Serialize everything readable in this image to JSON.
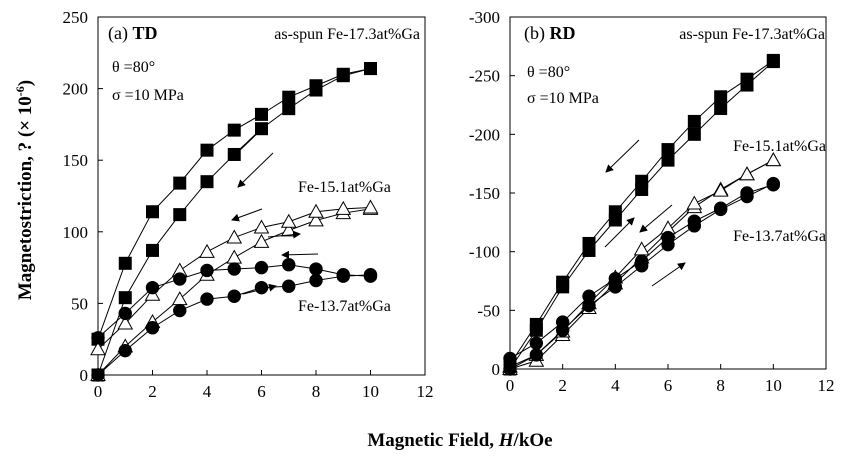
{
  "figure": {
    "ylabel": "Magnetostriction, ? (× 10",
    "ylabel_exponent": "-6",
    "ylabel_close": ")",
    "xlabel": "Magnetic Field, ",
    "xlabel_italic": "H",
    "xlabel_unit": "/kOe"
  },
  "chart_data": [
    {
      "type": "line",
      "panel_prefix": "(a) ",
      "panel_bold": "TD",
      "sample": "as-spun Fe-17.3at%Ga",
      "theta": "θ =80°",
      "sigma": "σ =10 MPa",
      "xlim": [
        0,
        12
      ],
      "ylim": [
        0,
        250
      ],
      "xticks": [
        "0",
        "2",
        "4",
        "6",
        "8",
        "10",
        "12"
      ],
      "yticks": [
        "0",
        "50",
        "100",
        "150",
        "200",
        "250"
      ],
      "series": [
        {
          "name": "as-spun Fe-17.3at%Ga",
          "marker": "square",
          "fill": "#000000",
          "up_x": [
            0,
            1,
            2,
            3,
            4,
            5,
            6,
            7,
            8,
            9,
            10
          ],
          "up": [
            0,
            54,
            87,
            112,
            135,
            154,
            172,
            186,
            199,
            209,
            214
          ],
          "down_x": [
            10,
            9,
            8,
            7,
            6,
            5,
            4,
            3,
            2,
            1,
            0
          ],
          "down": [
            214,
            210,
            202,
            194,
            182,
            171,
            157,
            134,
            114,
            78,
            25
          ]
        },
        {
          "name": "Fe-15.1at%Ga",
          "marker": "triangle",
          "fill": "#ffffff",
          "up_x": [
            0,
            1,
            2,
            3,
            4,
            5,
            6,
            7,
            8,
            9,
            10
          ],
          "up": [
            0,
            20,
            37,
            53,
            70,
            82,
            93,
            101,
            108,
            113,
            116
          ],
          "down_x": [
            10,
            9,
            8,
            7,
            6,
            5,
            4,
            3,
            2,
            1,
            0
          ],
          "down": [
            117,
            116,
            114,
            107,
            103,
            96,
            86,
            73,
            56,
            36,
            18
          ]
        },
        {
          "name": "Fe-13.7at%Ga",
          "marker": "circle",
          "fill": "#000000",
          "up_x": [
            0,
            1,
            2,
            3,
            4,
            5,
            6,
            7,
            8,
            9,
            10
          ],
          "up": [
            0,
            17,
            33,
            45,
            53,
            55,
            61,
            62,
            66,
            69,
            70
          ],
          "down_x": [
            10,
            9,
            8,
            7,
            6,
            5,
            4,
            3,
            2,
            1,
            0
          ],
          "down": [
            69,
            70,
            74,
            77,
            75,
            74,
            73,
            67,
            61,
            43,
            26
          ]
        }
      ],
      "labels": [
        "as-spun Fe-17.3at%Ga",
        "Fe-15.1at%Ga",
        "Fe-13.7at%Ga"
      ]
    },
    {
      "type": "line",
      "panel_prefix": "(b) ",
      "panel_bold": "RD",
      "sample": "as-spun Fe-17.3at%Ga",
      "theta": "θ =80°",
      "sigma": "σ =10 MPa",
      "xlim": [
        0,
        12
      ],
      "ylim": [
        0,
        -300
      ],
      "xticks": [
        "0",
        "2",
        "4",
        "6",
        "8",
        "10",
        "12"
      ],
      "yticks": [
        "0",
        "-50",
        "-100",
        "-150",
        "-200",
        "-250",
        "-300"
      ],
      "series": [
        {
          "name": "as-spun Fe-17.3at%Ga",
          "marker": "square",
          "fill": "#000000",
          "up_x": [
            0,
            1,
            2,
            3,
            4,
            5,
            6,
            7,
            8,
            9,
            10
          ],
          "up": [
            0,
            -33,
            -70,
            -101,
            -127,
            -153,
            -178,
            -200,
            -222,
            -242,
            -262
          ],
          "down_x": [
            10,
            9,
            8,
            7,
            6,
            5,
            4,
            3,
            2,
            1,
            0
          ],
          "down": [
            -263,
            -247,
            -232,
            -211,
            -187,
            -160,
            -134,
            -107,
            -74,
            -38,
            -4
          ]
        },
        {
          "name": "Fe-15.1at%Ga",
          "marker": "triangle",
          "fill": "#ffffff",
          "up_x": [
            0,
            1,
            2,
            3,
            4,
            5,
            6,
            7,
            8,
            9,
            10
          ],
          "up": [
            0,
            -7,
            -29,
            -52,
            -73,
            -95,
            -117,
            -138,
            -153,
            -166,
            -178
          ],
          "down_x": [
            10,
            9,
            8,
            7,
            6,
            5,
            4,
            3,
            2,
            1,
            0
          ],
          "down": [
            -178,
            -166,
            -152,
            -141,
            -120,
            -102,
            -78,
            -56,
            -32,
            -12,
            -2
          ]
        },
        {
          "name": "Fe-13.7at%Ga",
          "marker": "circle",
          "fill": "#000000",
          "up_x": [
            0,
            1,
            2,
            3,
            4,
            5,
            6,
            7,
            8,
            9,
            10
          ],
          "up": [
            0,
            -12,
            -33,
            -54,
            -70,
            -88,
            -106,
            -122,
            -136,
            -147,
            -158
          ],
          "down_x": [
            10,
            9,
            8,
            7,
            6,
            5,
            4,
            3,
            2,
            1,
            0
          ],
          "down": [
            -157,
            -150,
            -137,
            -126,
            -112,
            -92,
            -77,
            -62,
            -40,
            -22,
            -9
          ]
        }
      ],
      "labels": [
        "as-spun Fe-17.3at%Ga",
        "Fe-15.1at%Ga",
        "Fe-13.7at%Ga"
      ]
    }
  ]
}
